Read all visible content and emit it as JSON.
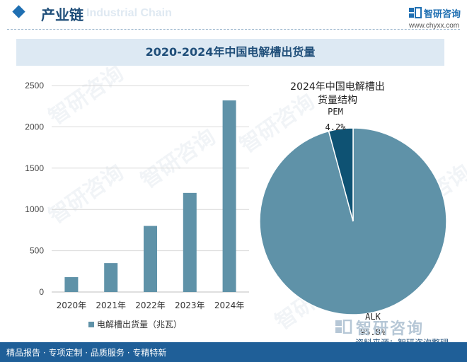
{
  "header": {
    "title": "产业链",
    "subtitle": "Industrial Chain",
    "brand": "智研咨询",
    "url": "www.chyxx.com"
  },
  "chart_title": "2020-2024年中国电解槽出货量",
  "footer": {
    "tagline": "精品报告 · 专项定制 · 品质服务 · 专精特新",
    "source": "资料来源：智研咨询整理",
    "source_brand": "智研咨询"
  },
  "watermark": "智研咨询",
  "colors": {
    "bar": "#5f92a8",
    "pie_alk": "#5f92a8",
    "pie_pem": "#0e5273",
    "brand_blue": "#1f5f98"
  },
  "chart_data": [
    {
      "type": "bar",
      "title": "",
      "categories": [
        "2020年",
        "2021年",
        "2022年",
        "2023年",
        "2024年"
      ],
      "series": [
        {
          "name": "电解槽出货量（兆瓦）",
          "values": [
            180,
            350,
            800,
            1200,
            2320
          ]
        }
      ],
      "ylim": [
        0,
        2500
      ],
      "yticks": [
        0,
        500,
        1000,
        1500,
        2000,
        2500
      ],
      "grid": true,
      "legend": "bottom"
    },
    {
      "type": "pie",
      "title": "2024年中国电解槽出货量结构",
      "slices": [
        {
          "label": "ALK",
          "value": 95.8,
          "display": "95.8%"
        },
        {
          "label": "PEM",
          "value": 4.2,
          "display": "4.2%"
        }
      ]
    }
  ]
}
